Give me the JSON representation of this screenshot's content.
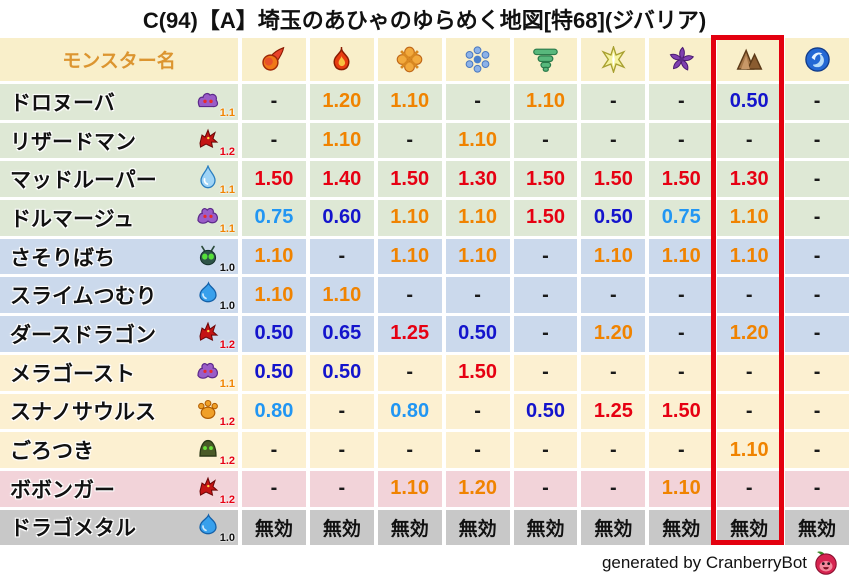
{
  "title": "C(94)【A】埼玉のあひゃのゆらめく地図[特68](ジバリア)",
  "header": {
    "monster_col_label": "モンスター名",
    "elements": [
      {
        "id": "fire",
        "icon": "fireball-icon"
      },
      {
        "id": "flame",
        "icon": "flame-icon"
      },
      {
        "id": "explosion",
        "icon": "burst-icon"
      },
      {
        "id": "ice",
        "icon": "snowflake-icon"
      },
      {
        "id": "wind",
        "icon": "tornado-icon"
      },
      {
        "id": "light",
        "icon": "star-icon"
      },
      {
        "id": "dark",
        "icon": "pinwheel-icon"
      },
      {
        "id": "earth",
        "icon": "rock-icon"
      },
      {
        "id": "water",
        "icon": "wave-icon"
      }
    ]
  },
  "highlight": {
    "column": "earth",
    "color": "#e3000f"
  },
  "rows": [
    {
      "name": "ドロヌーバ",
      "icon": "purple-blob-icon",
      "level": "1.1",
      "level_color": "orange",
      "group": "green",
      "cells": [
        [
          "-",
          "dash"
        ],
        [
          "1.20",
          "orange"
        ],
        [
          "1.10",
          "orange"
        ],
        [
          "-",
          "dash"
        ],
        [
          "1.10",
          "orange"
        ],
        [
          "-",
          "dash"
        ],
        [
          "-",
          "dash"
        ],
        [
          "0.50",
          "blue"
        ],
        [
          "-",
          "dash"
        ]
      ]
    },
    {
      "name": "リザードマン",
      "icon": "red-dragon-icon",
      "level": "1.2",
      "level_color": "red",
      "group": "green",
      "cells": [
        [
          "-",
          "dash"
        ],
        [
          "1.10",
          "orange"
        ],
        [
          "-",
          "dash"
        ],
        [
          "1.10",
          "orange"
        ],
        [
          "-",
          "dash"
        ],
        [
          "-",
          "dash"
        ],
        [
          "-",
          "dash"
        ],
        [
          "-",
          "dash"
        ],
        [
          "-",
          "dash"
        ]
      ]
    },
    {
      "name": "マッドルーパー",
      "icon": "water-drop-icon",
      "level": "1.1",
      "level_color": "orange",
      "group": "green",
      "cells": [
        [
          "1.50",
          "red"
        ],
        [
          "1.40",
          "red"
        ],
        [
          "1.50",
          "red"
        ],
        [
          "1.30",
          "red"
        ],
        [
          "1.50",
          "red"
        ],
        [
          "1.50",
          "red"
        ],
        [
          "1.50",
          "red"
        ],
        [
          "1.30",
          "red"
        ],
        [
          "-",
          "dash"
        ]
      ]
    },
    {
      "name": "ドルマージュ",
      "icon": "purple-ghost-icon",
      "level": "1.1",
      "level_color": "orange",
      "group": "green",
      "cells": [
        [
          "0.75",
          "lblue"
        ],
        [
          "0.60",
          "blue"
        ],
        [
          "1.10",
          "orange"
        ],
        [
          "1.10",
          "orange"
        ],
        [
          "1.50",
          "red"
        ],
        [
          "0.50",
          "blue"
        ],
        [
          "0.75",
          "lblue"
        ],
        [
          "1.10",
          "orange"
        ],
        [
          "-",
          "dash"
        ]
      ]
    },
    {
      "name": "さそりばち",
      "icon": "green-bug-icon",
      "level": "1.0",
      "level_color": "black",
      "group": "blue",
      "cells": [
        [
          "1.10",
          "orange"
        ],
        [
          "-",
          "dash"
        ],
        [
          "1.10",
          "orange"
        ],
        [
          "1.10",
          "orange"
        ],
        [
          "-",
          "dash"
        ],
        [
          "1.10",
          "orange"
        ],
        [
          "1.10",
          "orange"
        ],
        [
          "1.10",
          "orange"
        ],
        [
          "-",
          "dash"
        ]
      ]
    },
    {
      "name": "スライムつむり",
      "icon": "blue-slime-icon",
      "level": "1.0",
      "level_color": "black",
      "group": "blue",
      "cells": [
        [
          "1.10",
          "orange"
        ],
        [
          "1.10",
          "orange"
        ],
        [
          "-",
          "dash"
        ],
        [
          "-",
          "dash"
        ],
        [
          "-",
          "dash"
        ],
        [
          "-",
          "dash"
        ],
        [
          "-",
          "dash"
        ],
        [
          "-",
          "dash"
        ],
        [
          "-",
          "dash"
        ]
      ]
    },
    {
      "name": "ダースドラゴン",
      "icon": "red-dragon-icon",
      "level": "1.2",
      "level_color": "red",
      "group": "blue",
      "cells": [
        [
          "0.50",
          "blue"
        ],
        [
          "0.65",
          "blue"
        ],
        [
          "1.25",
          "red"
        ],
        [
          "0.50",
          "blue"
        ],
        [
          "-",
          "dash"
        ],
        [
          "1.20",
          "orange"
        ],
        [
          "-",
          "dash"
        ],
        [
          "1.20",
          "orange"
        ],
        [
          "-",
          "dash"
        ]
      ]
    },
    {
      "name": "メラゴースト",
      "icon": "purple-ghost-icon",
      "level": "1.1",
      "level_color": "orange",
      "group": "cream",
      "cells": [
        [
          "0.50",
          "blue"
        ],
        [
          "0.50",
          "blue"
        ],
        [
          "-",
          "dash"
        ],
        [
          "1.50",
          "red"
        ],
        [
          "-",
          "dash"
        ],
        [
          "-",
          "dash"
        ],
        [
          "-",
          "dash"
        ],
        [
          "-",
          "dash"
        ],
        [
          "-",
          "dash"
        ]
      ]
    },
    {
      "name": "スナノサウルス",
      "icon": "orange-paw-icon",
      "level": "1.2",
      "level_color": "red",
      "group": "cream",
      "cells": [
        [
          "0.80",
          "lblue"
        ],
        [
          "-",
          "dash"
        ],
        [
          "0.80",
          "lblue"
        ],
        [
          "-",
          "dash"
        ],
        [
          "0.50",
          "blue"
        ],
        [
          "1.25",
          "red"
        ],
        [
          "1.50",
          "red"
        ],
        [
          "-",
          "dash"
        ],
        [
          "-",
          "dash"
        ]
      ]
    },
    {
      "name": "ごろつき",
      "icon": "green-hood-icon",
      "level": "1.2",
      "level_color": "red",
      "group": "cream",
      "cells": [
        [
          "-",
          "dash"
        ],
        [
          "-",
          "dash"
        ],
        [
          "-",
          "dash"
        ],
        [
          "-",
          "dash"
        ],
        [
          "-",
          "dash"
        ],
        [
          "-",
          "dash"
        ],
        [
          "-",
          "dash"
        ],
        [
          "1.10",
          "orange"
        ],
        [
          "-",
          "dash"
        ]
      ]
    },
    {
      "name": "ボボンガー",
      "icon": "red-dragon-icon",
      "level": "1.2",
      "level_color": "red",
      "group": "pink",
      "cells": [
        [
          "-",
          "dash"
        ],
        [
          "-",
          "dash"
        ],
        [
          "1.10",
          "orange"
        ],
        [
          "1.20",
          "orange"
        ],
        [
          "-",
          "dash"
        ],
        [
          "-",
          "dash"
        ],
        [
          "1.10",
          "orange"
        ],
        [
          "-",
          "dash"
        ],
        [
          "-",
          "dash"
        ]
      ]
    },
    {
      "name": "ドラゴメタル",
      "icon": "blue-slime-icon",
      "level": "1.0",
      "level_color": "black",
      "group": "gray",
      "cells": [
        [
          "無効",
          "invalid"
        ],
        [
          "無効",
          "invalid"
        ],
        [
          "無効",
          "invalid"
        ],
        [
          "無効",
          "invalid"
        ],
        [
          "無効",
          "invalid"
        ],
        [
          "無効",
          "invalid"
        ],
        [
          "無効",
          "invalid"
        ],
        [
          "無効",
          "invalid"
        ],
        [
          "無効",
          "invalid"
        ]
      ]
    }
  ],
  "footer": {
    "credit": "generated by CranberryBot",
    "icon": "cranberry-icon"
  },
  "colors": {
    "weak_strong": "#e60012",
    "weak_mild": "#f08300",
    "resist_strong": "#1414cc",
    "resist_mild": "#2196f3",
    "neutral_dash": "#1a1a1a",
    "highlight_box": "#e3000f",
    "header_bg": "#f9efca",
    "header_label": "#dc9530",
    "row_green": "#dee8d5",
    "row_blue": "#cbd9ec",
    "row_cream": "#fcf0d1",
    "row_pink": "#f2d3d9",
    "row_gray": "#c8c8c8"
  }
}
